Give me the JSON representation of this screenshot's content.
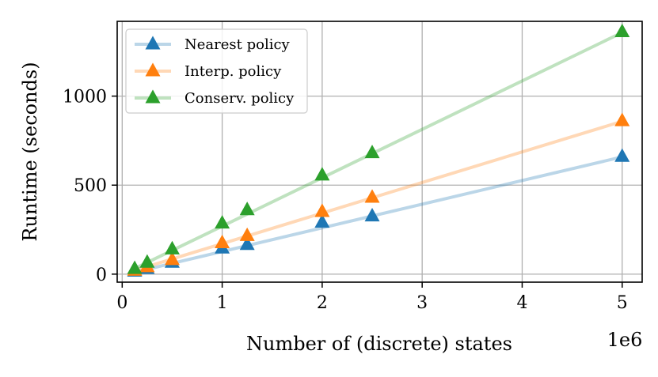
{
  "chart_data": {
    "type": "line",
    "title": "",
    "xlabel": "Number of (discrete) states",
    "ylabel": "Runtime (seconds)",
    "x_offset_label": "1e6",
    "xlim": [
      -0.05,
      5.2
    ],
    "ylim": [
      -45,
      1420
    ],
    "grid": true,
    "legend_position": "top-left",
    "x_ticks": [
      0,
      1,
      2,
      3,
      4,
      5
    ],
    "x_tick_labels": [
      "0",
      "1",
      "2",
      "3",
      "4",
      "5"
    ],
    "y_ticks": [
      0,
      500,
      1000
    ],
    "y_tick_labels": [
      "0",
      "500",
      "1000"
    ],
    "series": [
      {
        "name": "Nearest policy",
        "color": "#1f77b4",
        "fit_line": [
          [
            0.12,
            10
          ],
          [
            5.01,
            660
          ]
        ],
        "x": [
          0.125,
          0.25,
          0.5,
          1.0,
          1.25,
          2.0,
          2.5,
          5.0
        ],
        "y": [
          15,
          30,
          65,
          145,
          165,
          290,
          325,
          660
        ]
      },
      {
        "name": "Interp. policy",
        "color": "#ff7f0e",
        "fit_line": [
          [
            0.12,
            20
          ],
          [
            5.01,
            860
          ]
        ],
        "x": [
          0.125,
          0.25,
          0.5,
          1.0,
          1.25,
          2.0,
          2.5,
          5.0
        ],
        "y": [
          20,
          40,
          80,
          175,
          215,
          350,
          430,
          860
        ]
      },
      {
        "name": "Conserv. policy",
        "color": "#2ca02c",
        "fit_line": [
          [
            0.12,
            30
          ],
          [
            5.01,
            1360
          ]
        ],
        "x": [
          0.125,
          0.25,
          0.5,
          1.0,
          1.25,
          2.0,
          2.5,
          5.0
        ],
        "y": [
          30,
          65,
          140,
          285,
          360,
          555,
          680,
          1360
        ]
      }
    ]
  }
}
